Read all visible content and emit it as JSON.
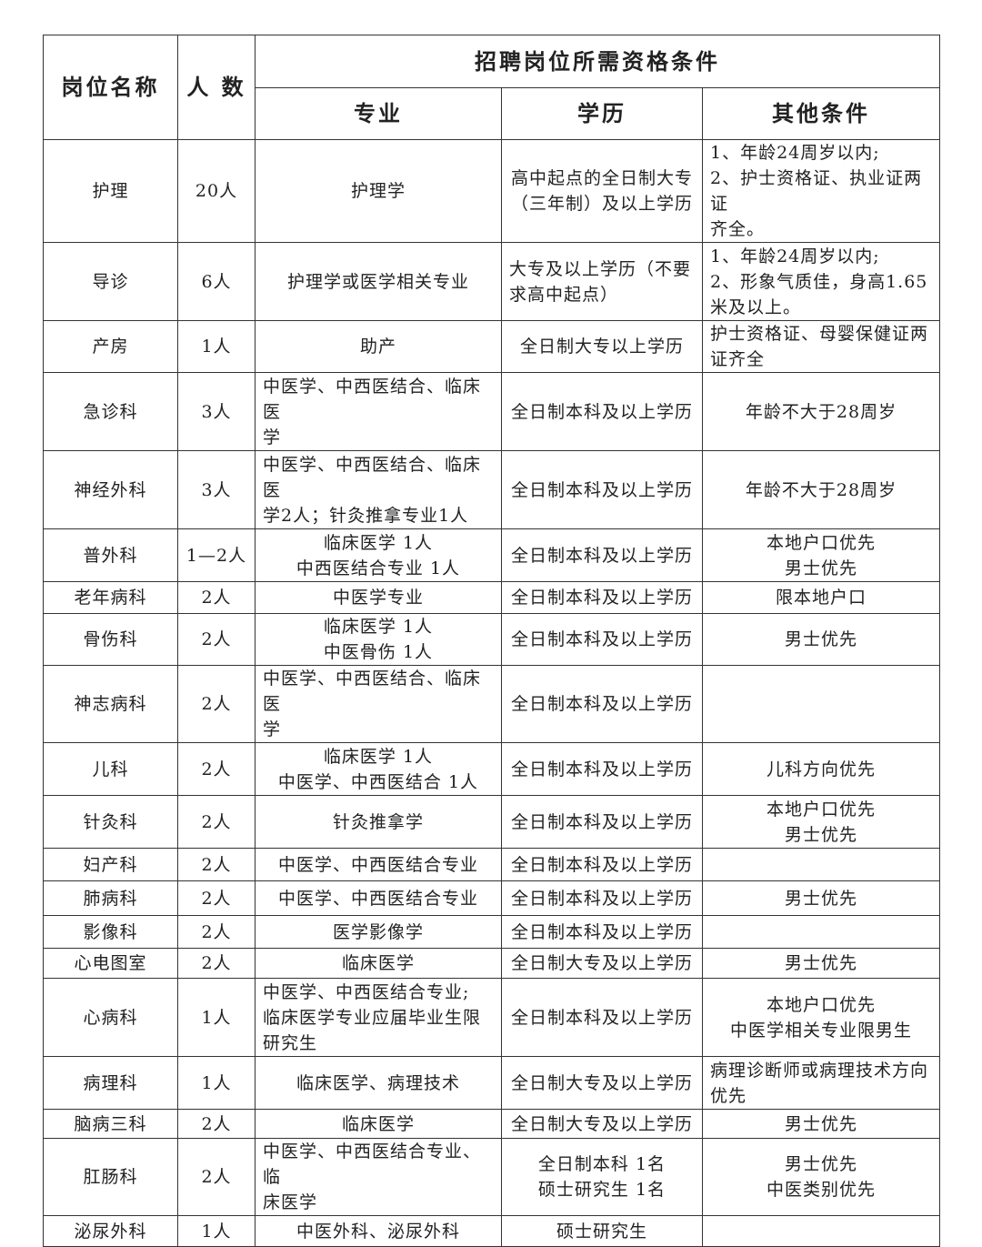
{
  "header": {
    "position": "岗位名称",
    "count": "人 数",
    "requirements": "招聘岗位所需资格条件",
    "major": "专业",
    "education": "学历",
    "other": "其他条件"
  },
  "rows": [
    {
      "position": "护理",
      "count": "20人",
      "major": "护理学",
      "education": "高中起点的全日制大专\n（三年制）及以上学历",
      "other": "1、年龄24周岁以内;\n2、护士资格证、执业证两证\n齐全。"
    },
    {
      "position": "导诊",
      "count": "6人",
      "major": "护理学或医学相关专业",
      "education": "大专及以上学历（不要\n求高中起点）",
      "other": "1、年龄24周岁以内;\n2、形象气质佳，身高1.65\n米及以上。"
    },
    {
      "position": "产房",
      "count": "1人",
      "major": "助产",
      "education": "全日制大专以上学历",
      "other": "护士资格证、母婴保健证两\n证齐全"
    },
    {
      "position": "急诊科",
      "count": "3人",
      "major": "中医学、中西医结合、临床医\n学",
      "education": "全日制本科及以上学历",
      "other": "年龄不大于28周岁"
    },
    {
      "position": "神经外科",
      "count": "3人",
      "major": "中医学、中西医结合、临床医\n学2人；针灸推拿专业1人",
      "education": "全日制本科及以上学历",
      "other": "年龄不大于28周岁"
    },
    {
      "position": "普外科",
      "count": "1—2人",
      "major": "临床医学 1人\n中西医结合专业 1人",
      "education": "全日制本科及以上学历",
      "other": "本地户口优先\n男士优先"
    },
    {
      "position": "老年病科",
      "count": "2人",
      "major": "中医学专业",
      "education": "全日制本科及以上学历",
      "other": "限本地户口"
    },
    {
      "position": "骨伤科",
      "count": "2人",
      "major": "临床医学 1人\n中医骨伤 1人",
      "education": "全日制本科及以上学历",
      "other": "男士优先"
    },
    {
      "position": "神志病科",
      "count": "2人",
      "major": "中医学、中西医结合、临床医\n学",
      "education": "全日制本科及以上学历",
      "other": ""
    },
    {
      "position": "儿科",
      "count": "2人",
      "major": "临床医学 1人\n中医学、中西医结合 1人",
      "education": "全日制本科及以上学历",
      "other": "儿科方向优先"
    },
    {
      "position": "针灸科",
      "count": "2人",
      "major": "针灸推拿学",
      "education": "全日制本科及以上学历",
      "other": "本地户口优先\n男士优先"
    },
    {
      "position": "妇产科",
      "count": "2人",
      "major": "中医学、中西医结合专业",
      "education": "全日制本科及以上学历",
      "other": ""
    },
    {
      "position": "肺病科",
      "count": "2人",
      "major": "中医学、中西医结合专业",
      "education": "全日制本科及以上学历",
      "other": "男士优先"
    },
    {
      "position": "影像科",
      "count": "2人",
      "major": "医学影像学",
      "education": "全日制本科及以上学历",
      "other": ""
    },
    {
      "position": "心电图室",
      "count": "2人",
      "major": "临床医学",
      "education": "全日制大专及以上学历",
      "other": "男士优先"
    },
    {
      "position": "心病科",
      "count": "1人",
      "major": "中医学、中西医结合专业;\n临床医学专业应届毕业生限\n研究生",
      "education": "全日制本科及以上学历",
      "other": "本地户口优先\n中医学相关专业限男生"
    },
    {
      "position": "病理科",
      "count": "1人",
      "major": "临床医学、病理技术",
      "education": "全日制大专及以上学历",
      "other": "病理诊断师或病理技术方向\n优先"
    },
    {
      "position": "脑病三科",
      "count": "2人",
      "major": "临床医学",
      "education": "全日制大专及以上学历",
      "other": "男士优先"
    },
    {
      "position": "肛肠科",
      "count": "2人",
      "major": "中医学、中西医结合专业、临\n床医学",
      "education": "全日制本科 1名\n硕士研究生 1名",
      "other": "男士优先\n中医类别优先"
    },
    {
      "position": "泌尿外科",
      "count": "1人",
      "major": "中医外科、泌尿外科",
      "education": "硕士研究生",
      "other": ""
    }
  ]
}
